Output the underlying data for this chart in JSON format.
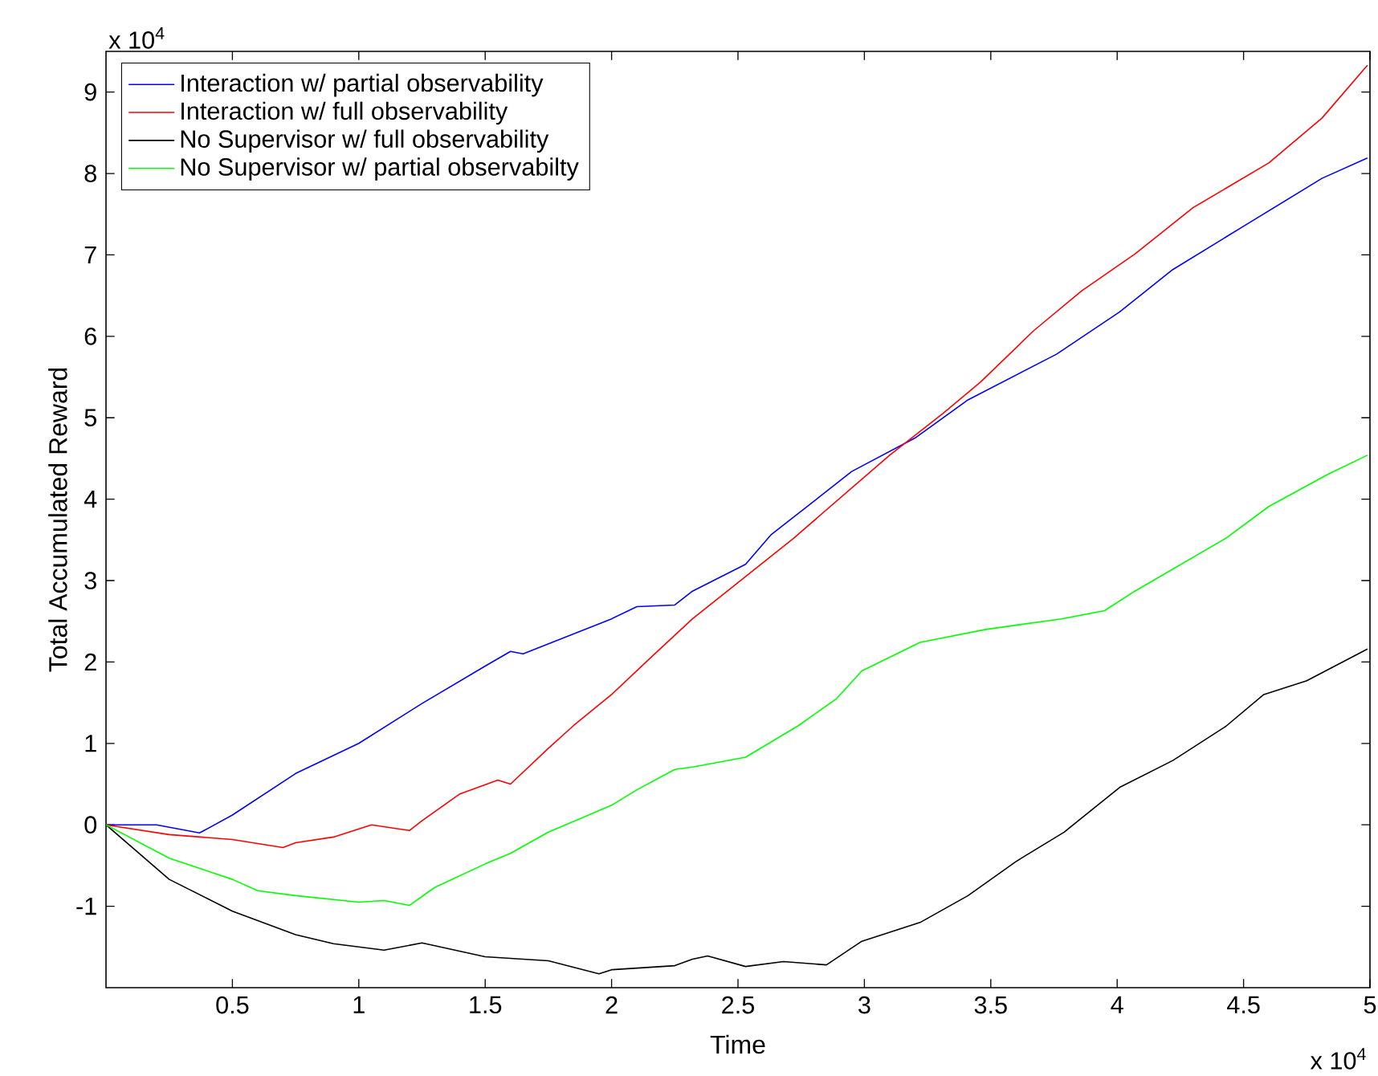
{
  "chart_data": {
    "type": "line",
    "xlabel": "Time",
    "ylabel": "Total Accumulated Reward",
    "annotations": [
      "x 10$^{4}$",
      "x 10$^{4}$"
    ],
    "xlim": [
      0,
      5
    ],
    "ylim": [
      -2,
      9.5
    ],
    "xticks": [
      0.5,
      1,
      1.5,
      2,
      2.5,
      3,
      3.5,
      4,
      4.5,
      5
    ],
    "yticks": [
      -1,
      0,
      1,
      2,
      3,
      4,
      5,
      6,
      7,
      8,
      9
    ],
    "grid": false,
    "legend": "top left",
    "line_style": "solid",
    "marker": "none",
    "series": [
      {
        "name": "Interaction w/ partial observability",
        "color": "#0000ff",
        "x": [
          0,
          0.2,
          0.37,
          0.5,
          0.75,
          1,
          1.25,
          1.5,
          1.6,
          1.65,
          2,
          2.1,
          2.25,
          2.32,
          2.53,
          2.63,
          2.95,
          3.2,
          3.41,
          3.76,
          4.01,
          4.22,
          4.52,
          4.81,
          4.99
        ],
        "values": [
          0,
          0,
          -0.1,
          0.12,
          0.63,
          1.0,
          1.49,
          1.95,
          2.13,
          2.1,
          2.53,
          2.68,
          2.7,
          2.87,
          3.2,
          3.56,
          4.34,
          4.75,
          5.22,
          5.78,
          6.3,
          6.82,
          7.39,
          7.94,
          8.19
        ]
      },
      {
        "name": "Interaction w/ full observability",
        "color": "#ff0000",
        "x": [
          0,
          0.25,
          0.5,
          0.7,
          0.75,
          0.9,
          1.05,
          1.2,
          1.25,
          1.4,
          1.55,
          1.6,
          1.75,
          1.85,
          2.0,
          2.15,
          2.32,
          2.72,
          3.1,
          3.31,
          3.46,
          3.67,
          3.86,
          4.07,
          4.3,
          4.6,
          4.81,
          4.99
        ],
        "values": [
          0,
          -0.12,
          -0.18,
          -0.28,
          -0.22,
          -0.15,
          0.0,
          -0.07,
          0.05,
          0.38,
          0.55,
          0.5,
          0.94,
          1.22,
          1.6,
          2.04,
          2.53,
          3.52,
          4.54,
          5.05,
          5.44,
          6.07,
          6.56,
          7.01,
          7.58,
          8.13,
          8.68,
          9.33
        ]
      },
      {
        "name": "No Supervisor w/ full observability",
        "color": "#000000",
        "x": [
          0,
          0.25,
          0.5,
          0.75,
          0.9,
          1.0,
          1.1,
          1.25,
          1.5,
          1.75,
          1.95,
          2.0,
          2.25,
          2.32,
          2.38,
          2.53,
          2.68,
          2.85,
          2.99,
          3.22,
          3.41,
          3.6,
          3.79,
          4.01,
          4.22,
          4.43,
          4.58,
          4.75,
          4.99
        ],
        "values": [
          0,
          -0.67,
          -1.06,
          -1.35,
          -1.46,
          -1.5,
          -1.54,
          -1.45,
          -1.62,
          -1.67,
          -1.83,
          -1.78,
          -1.73,
          -1.65,
          -1.61,
          -1.74,
          -1.68,
          -1.72,
          -1.43,
          -1.2,
          -0.87,
          -0.45,
          -0.09,
          0.46,
          0.79,
          1.21,
          1.6,
          1.77,
          2.16
        ]
      },
      {
        "name": "No Supervisor w/ partial observabilty",
        "color": "#00ff00",
        "x": [
          0,
          0.25,
          0.5,
          0.6,
          0.75,
          1.0,
          1.1,
          1.2,
          1.3,
          1.5,
          1.6,
          1.75,
          2.0,
          2.1,
          2.25,
          2.32,
          2.53,
          2.74,
          2.89,
          2.99,
          3.22,
          3.48,
          3.78,
          3.95,
          4.07,
          4.43,
          4.6,
          4.83,
          4.99
        ],
        "values": [
          0,
          -0.41,
          -0.67,
          -0.81,
          -0.87,
          -0.95,
          -0.93,
          -0.99,
          -0.77,
          -0.48,
          -0.35,
          -0.09,
          0.24,
          0.43,
          0.68,
          0.71,
          0.83,
          1.22,
          1.55,
          1.89,
          2.24,
          2.4,
          2.53,
          2.63,
          2.87,
          3.52,
          3.91,
          4.3,
          4.54
        ]
      }
    ]
  }
}
